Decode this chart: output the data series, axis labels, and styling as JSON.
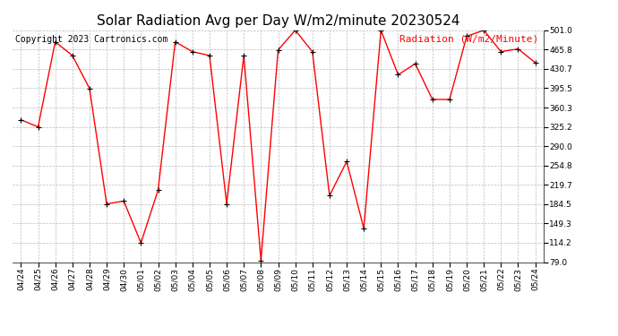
{
  "title": "Solar Radiation Avg per Day W/m2/minute 20230524",
  "copyright": "Copyright 2023 Cartronics.com",
  "legend_label": "Radiation (W/m2/Minute)",
  "dates": [
    "04/24",
    "04/25",
    "04/26",
    "04/27",
    "04/28",
    "04/29",
    "04/30",
    "05/01",
    "05/02",
    "05/03",
    "05/04",
    "05/05",
    "05/06",
    "05/07",
    "05/08",
    "05/09",
    "05/10",
    "05/11",
    "05/12",
    "05/13",
    "05/14",
    "05/15",
    "05/16",
    "05/17",
    "05/18",
    "05/19",
    "05/20",
    "05/21",
    "05/22",
    "05/23",
    "05/24"
  ],
  "values": [
    338,
    325,
    480,
    455,
    395,
    185,
    190,
    114,
    210,
    480,
    462,
    455,
    185,
    455,
    82,
    465,
    501,
    462,
    200,
    262,
    140,
    501,
    420,
    440,
    375,
    375,
    490,
    501,
    462,
    467,
    442
  ],
  "line_color": "red",
  "marker": "+",
  "marker_color": "black",
  "bg_color": "white",
  "grid_color": "#bbbbbb",
  "ymin": 79.0,
  "ymax": 501.0,
  "yticks": [
    79.0,
    114.2,
    149.3,
    184.5,
    219.7,
    254.8,
    290.0,
    325.2,
    360.3,
    395.5,
    430.7,
    465.8,
    501.0
  ],
  "title_fontsize": 11,
  "legend_fontsize": 8,
  "copyright_fontsize": 7,
  "tick_fontsize": 6.5
}
